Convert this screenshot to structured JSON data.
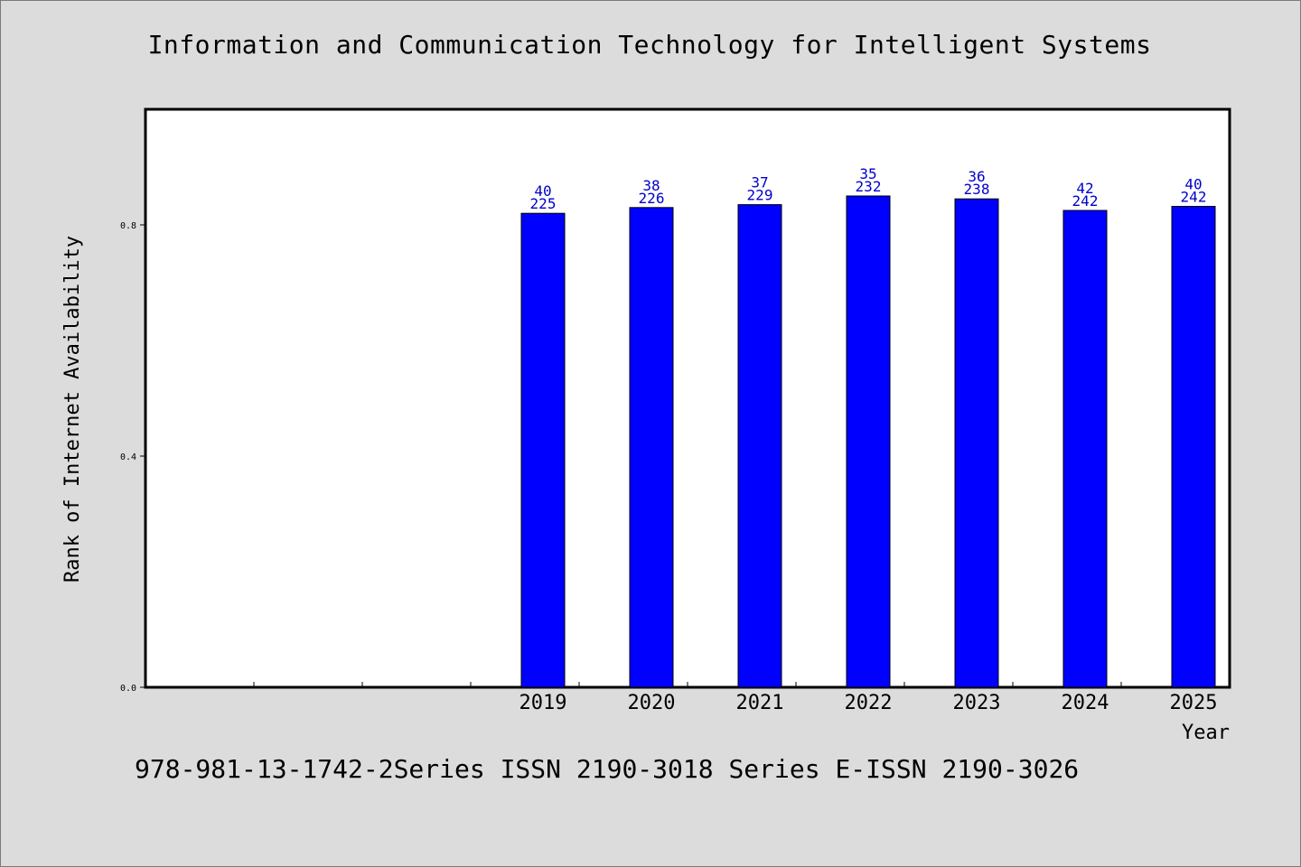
{
  "title": "Information and Communication Technology for Intelligent Systems",
  "footer": "978-981-13-1742-2Series ISSN 2190-3018 Series E-ISSN 2190-3026",
  "chart_data": {
    "type": "bar",
    "title": "Information and Communication Technology for Intelligent Systems",
    "xlabel": "Year",
    "ylabel": "Rank of Internet Availability",
    "categories": [
      "",
      "",
      "",
      "2019",
      "2020",
      "2021",
      "2022",
      "2023",
      "2024",
      "2025"
    ],
    "values": [
      null,
      null,
      null,
      0.82,
      0.83,
      0.835,
      0.85,
      0.845,
      0.825,
      0.832
    ],
    "labels_top": [
      "",
      "",
      "",
      "40",
      "38",
      "37",
      "35",
      "36",
      "42",
      "40"
    ],
    "labels_bottom": [
      "",
      "",
      "",
      "225",
      "226",
      "229",
      "232",
      "238",
      "242",
      "242"
    ],
    "ylim": [
      0,
      1.0
    ],
    "yticks": [
      0.0,
      0.4,
      0.8
    ],
    "ytick_labels": [
      "0.0",
      "0.4",
      "0.8"
    ],
    "grid": false,
    "colors": {
      "bar": "#0000ff",
      "label": "#0000cc",
      "plot_bg": "#ffffff",
      "page_bg": "#dcdcdc"
    }
  }
}
